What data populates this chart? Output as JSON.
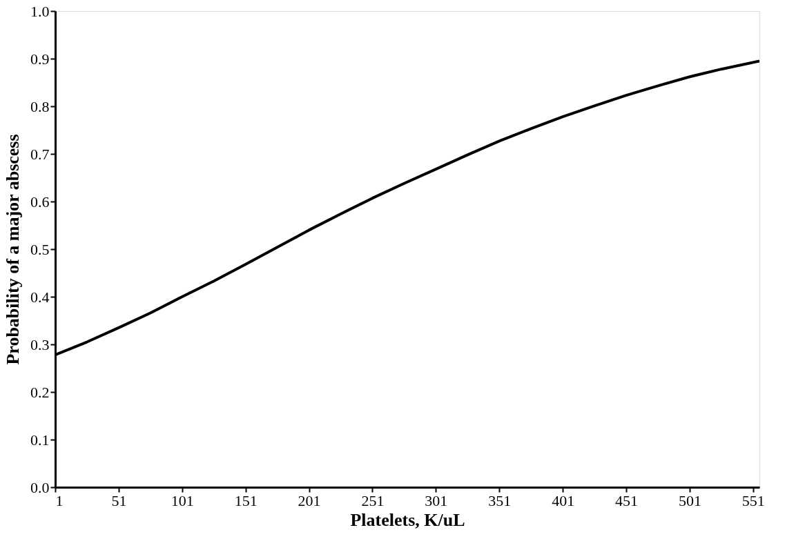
{
  "chart_data": {
    "type": "line",
    "xlabel": "Platelets, K/uL",
    "ylabel": "Probability of a major abscess",
    "x": [
      1,
      26,
      51,
      76,
      101,
      126,
      151,
      176,
      201,
      226,
      251,
      276,
      301,
      326,
      351,
      376,
      401,
      426,
      451,
      476,
      501,
      526,
      556
    ],
    "series": [
      {
        "color": "#000000",
        "values": [
          0.278,
          0.305,
          0.335,
          0.366,
          0.4,
          0.433,
          0.468,
          0.504,
          0.54,
          0.574,
          0.607,
          0.638,
          0.668,
          0.698,
          0.727,
          0.753,
          0.778,
          0.801,
          0.823,
          0.843,
          0.862,
          0.878,
          0.895
        ]
      }
    ],
    "xlim": [
      1,
      556
    ],
    "xticks": [
      1,
      51,
      101,
      151,
      201,
      251,
      301,
      351,
      401,
      451,
      501,
      551
    ],
    "ylim": [
      0,
      1
    ],
    "yticks": [
      {
        "value": 0,
        "label": "0.0"
      },
      {
        "value": 0.1,
        "label": "0.1"
      },
      {
        "value": 0.2,
        "label": "0.2"
      },
      {
        "value": 0.3,
        "label": "0.3"
      },
      {
        "value": 0.4,
        "label": "0.4"
      },
      {
        "value": 0.5,
        "label": "0.5"
      },
      {
        "value": 0.6,
        "label": "0.6"
      },
      {
        "value": 0.7,
        "label": "0.7"
      },
      {
        "value": 0.8,
        "label": "0.8"
      },
      {
        "value": 0.9,
        "label": "0.9"
      },
      {
        "value": 1.0,
        "label": "1.0"
      }
    ],
    "grid": false,
    "marker": "none",
    "line_style": "solid"
  }
}
